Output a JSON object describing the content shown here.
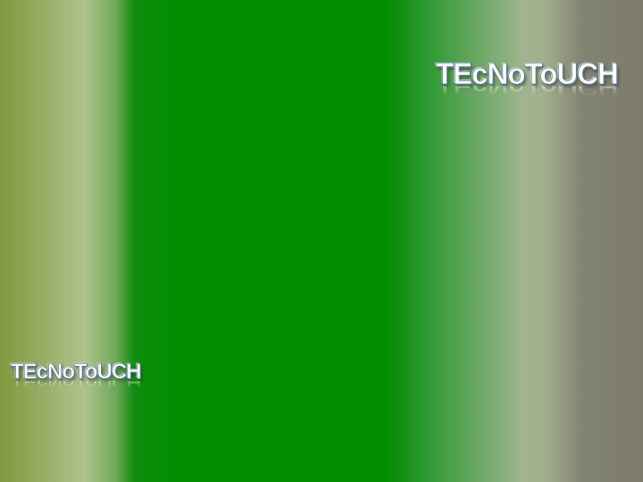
{
  "slide": {
    "logo_large": "TEcNoToUCH",
    "logo_small": "TEcNoToUCH"
  },
  "colors": {
    "green_band": "#008b00",
    "left_olive": "#7f9a3e",
    "right_gray": "#7c7a6b",
    "logo_outline": "#4f6e86"
  }
}
